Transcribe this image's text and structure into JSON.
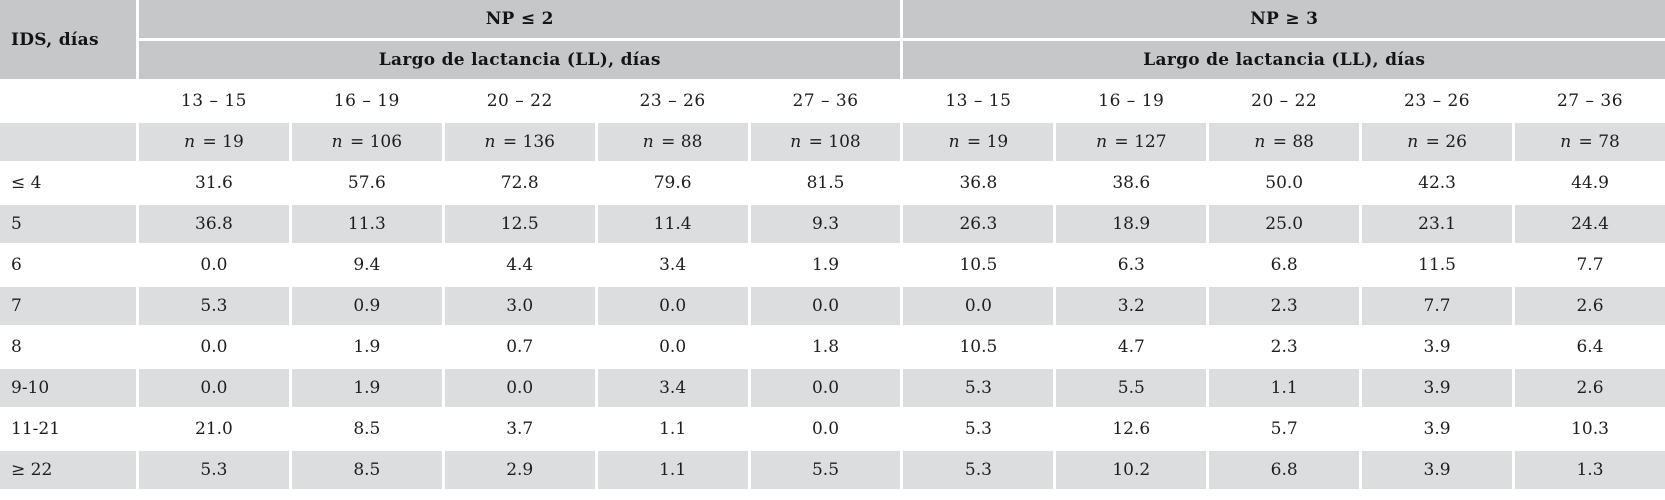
{
  "chart_data": {
    "type": "table",
    "row_header": "IDS, días",
    "col_groups": [
      {
        "name": "NP ≤ 2",
        "subheader": "Largo de lactancia (LL), días",
        "ll_ranges": [
          "13 – 15",
          "16 – 19",
          "20 – 22",
          "23 – 26",
          "27 – 36"
        ],
        "n_values": [
          "19",
          "106",
          "136",
          "88",
          "108"
        ]
      },
      {
        "name": "NP ≥ 3",
        "subheader": "Largo de lactancia (LL), días",
        "ll_ranges": [
          "13 – 15",
          "16 – 19",
          "20 – 22",
          "23 – 26",
          "27 – 36"
        ],
        "n_values": [
          "19",
          "127",
          "88",
          "26",
          "78"
        ]
      }
    ],
    "n_label": "n",
    "n_equals": "=",
    "rows": [
      {
        "label": "≤ 4",
        "values": [
          "31.6",
          "57.6",
          "72.8",
          "79.6",
          "81.5",
          "36.8",
          "38.6",
          "50.0",
          "42.3",
          "44.9"
        ]
      },
      {
        "label": "5",
        "values": [
          "36.8",
          "11.3",
          "12.5",
          "11.4",
          "9.3",
          "26.3",
          "18.9",
          "25.0",
          "23.1",
          "24.4"
        ]
      },
      {
        "label": "6",
        "values": [
          "0.0",
          "9.4",
          "4.4",
          "3.4",
          "1.9",
          "10.5",
          "6.3",
          "6.8",
          "11.5",
          "7.7"
        ]
      },
      {
        "label": "7",
        "values": [
          "5.3",
          "0.9",
          "3.0",
          "0.0",
          "0.0",
          "0.0",
          "3.2",
          "2.3",
          "7.7",
          "2.6"
        ]
      },
      {
        "label": "8",
        "values": [
          "0.0",
          "1.9",
          "0.7",
          "0.0",
          "1.8",
          "10.5",
          "4.7",
          "2.3",
          "3.9",
          "6.4"
        ]
      },
      {
        "label": "9-10",
        "values": [
          "0.0",
          "1.9",
          "0.0",
          "3.4",
          "0.0",
          "5.3",
          "5.5",
          "1.1",
          "3.9",
          "2.6"
        ]
      },
      {
        "label": "11-21",
        "values": [
          "21.0",
          "8.5",
          "3.7",
          "1.1",
          "0.0",
          "5.3",
          "12.6",
          "5.7",
          "3.9",
          "10.3"
        ]
      },
      {
        "label": "≥ 22",
        "values": [
          "5.3",
          "8.5",
          "2.9",
          "1.1",
          "5.5",
          "5.3",
          "10.2",
          "6.8",
          "3.9",
          "1.3"
        ]
      }
    ]
  },
  "colors": {
    "header_bg": "#c6c7c9",
    "row_alt_bg": "#dcddde",
    "row_bg": "#ffffff",
    "text": "#1e1e1e"
  }
}
